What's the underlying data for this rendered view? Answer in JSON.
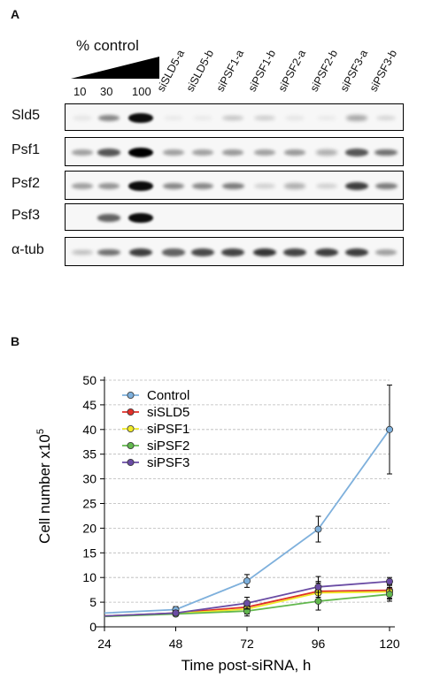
{
  "panelA": {
    "letter": "A",
    "control_label": "% control",
    "concentrations": [
      "10",
      "30",
      "100"
    ],
    "lanes": [
      "siSLD5-a",
      "siSLD5-b",
      "siPSF1-a",
      "siPSF1-b",
      "siPSF2-a",
      "siPSF2-b",
      "siPSF3-a",
      "siPSF3-b"
    ],
    "blots": [
      {
        "label": "Sld5",
        "intensities": [
          0.08,
          0.45,
          0.95,
          0.06,
          0.06,
          0.22,
          0.18,
          0.08,
          0.06,
          0.32,
          0.14
        ]
      },
      {
        "label": "Psf1",
        "intensities": [
          0.35,
          0.65,
          1.0,
          0.35,
          0.35,
          0.38,
          0.35,
          0.38,
          0.3,
          0.65,
          0.55
        ]
      },
      {
        "label": "Psf2",
        "intensities": [
          0.35,
          0.4,
          0.95,
          0.45,
          0.45,
          0.5,
          0.18,
          0.3,
          0.18,
          0.75,
          0.5
        ]
      },
      {
        "label": "Psf3",
        "intensities": [
          0.0,
          0.6,
          0.95,
          0.0,
          0.0,
          0.0,
          0.0,
          0.0,
          0.0,
          0.0,
          0.0
        ]
      },
      {
        "label": "α-tub",
        "intensities": [
          0.25,
          0.55,
          0.75,
          0.6,
          0.7,
          0.72,
          0.78,
          0.72,
          0.75,
          0.75,
          0.35
        ]
      }
    ]
  },
  "panelB": {
    "letter": "B"
  },
  "chart_data": {
    "type": "line",
    "xlabel": "Time post-siRNA, h",
    "ylabel": "Cell number x10",
    "ylabel_sup": "5",
    "x": [
      24,
      48,
      72,
      96,
      120
    ],
    "xlim": [
      24,
      120
    ],
    "ylim": [
      0,
      50
    ],
    "yticks": [
      0,
      5,
      10,
      15,
      20,
      25,
      30,
      35,
      40,
      45,
      50
    ],
    "grid": true,
    "legend": "top-left",
    "series": [
      {
        "name": "Control",
        "color": "#7eb0dc",
        "values": [
          2.8,
          3.5,
          9.3,
          19.8,
          40.0
        ],
        "err": [
          0,
          0.6,
          1.3,
          2.6,
          9.0
        ]
      },
      {
        "name": "siSLD5",
        "color": "#e0302a",
        "values": [
          2.2,
          2.8,
          4.0,
          7.2,
          7.4
        ],
        "err": [
          0,
          0.4,
          1.0,
          2.0,
          1.6
        ]
      },
      {
        "name": "siPSF1",
        "color": "#f0ea28",
        "values": [
          2.2,
          2.7,
          3.6,
          6.9,
          7.1
        ],
        "err": [
          0,
          0.4,
          1.0,
          2.0,
          1.5
        ]
      },
      {
        "name": "siPSF2",
        "color": "#62b84e",
        "values": [
          2.1,
          2.6,
          3.2,
          5.2,
          6.6
        ],
        "err": [
          0,
          0.4,
          1.0,
          1.8,
          1.4
        ]
      },
      {
        "name": "siPSF3",
        "color": "#6a4ca4",
        "values": [
          2.2,
          2.8,
          4.8,
          8.1,
          9.2
        ],
        "err": [
          0,
          0.5,
          1.2,
          2.1,
          0.8
        ]
      }
    ]
  }
}
